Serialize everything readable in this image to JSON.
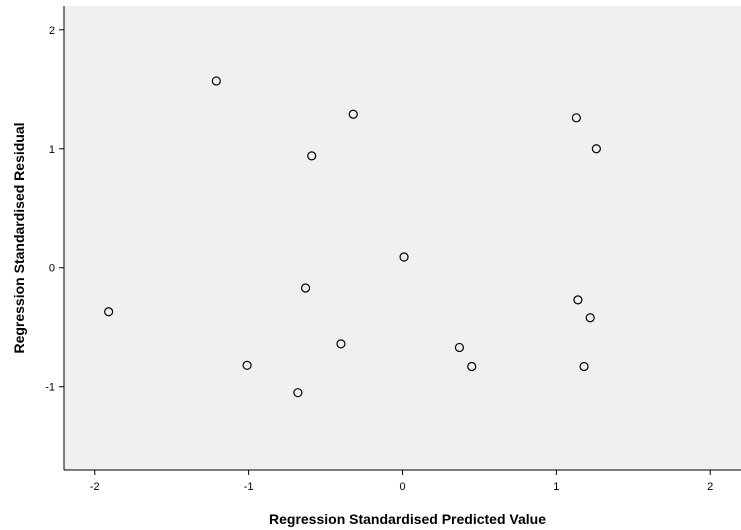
{
  "chart_data": {
    "type": "scatter",
    "title": "",
    "xlabel": "Regression Standardised Predicted Value",
    "ylabel": "Regression Standardised Residual",
    "xlim": [
      -2.2,
      2.2
    ],
    "ylim": [
      -1.7,
      2.2
    ],
    "xticks": [
      "-2",
      "-1",
      "0",
      "1",
      "2"
    ],
    "yticks": [
      "-1",
      "0",
      "1",
      "2"
    ],
    "grid": false,
    "background": "#f0f0f0",
    "marker": "open-circle",
    "points": [
      {
        "x": -1.21,
        "y": 1.57
      },
      {
        "x": -0.32,
        "y": 1.29
      },
      {
        "x": 1.13,
        "y": 1.26
      },
      {
        "x": 1.26,
        "y": 1.0
      },
      {
        "x": -0.59,
        "y": 0.94
      },
      {
        "x": 0.01,
        "y": 0.09
      },
      {
        "x": -0.63,
        "y": -0.17
      },
      {
        "x": 1.14,
        "y": -0.27
      },
      {
        "x": -1.91,
        "y": -0.37
      },
      {
        "x": 1.22,
        "y": -0.42
      },
      {
        "x": -0.4,
        "y": -0.64
      },
      {
        "x": 0.37,
        "y": -0.67
      },
      {
        "x": -1.01,
        "y": -0.82
      },
      {
        "x": 0.45,
        "y": -0.83
      },
      {
        "x": 1.18,
        "y": -0.83
      },
      {
        "x": -0.68,
        "y": -1.05
      }
    ]
  }
}
